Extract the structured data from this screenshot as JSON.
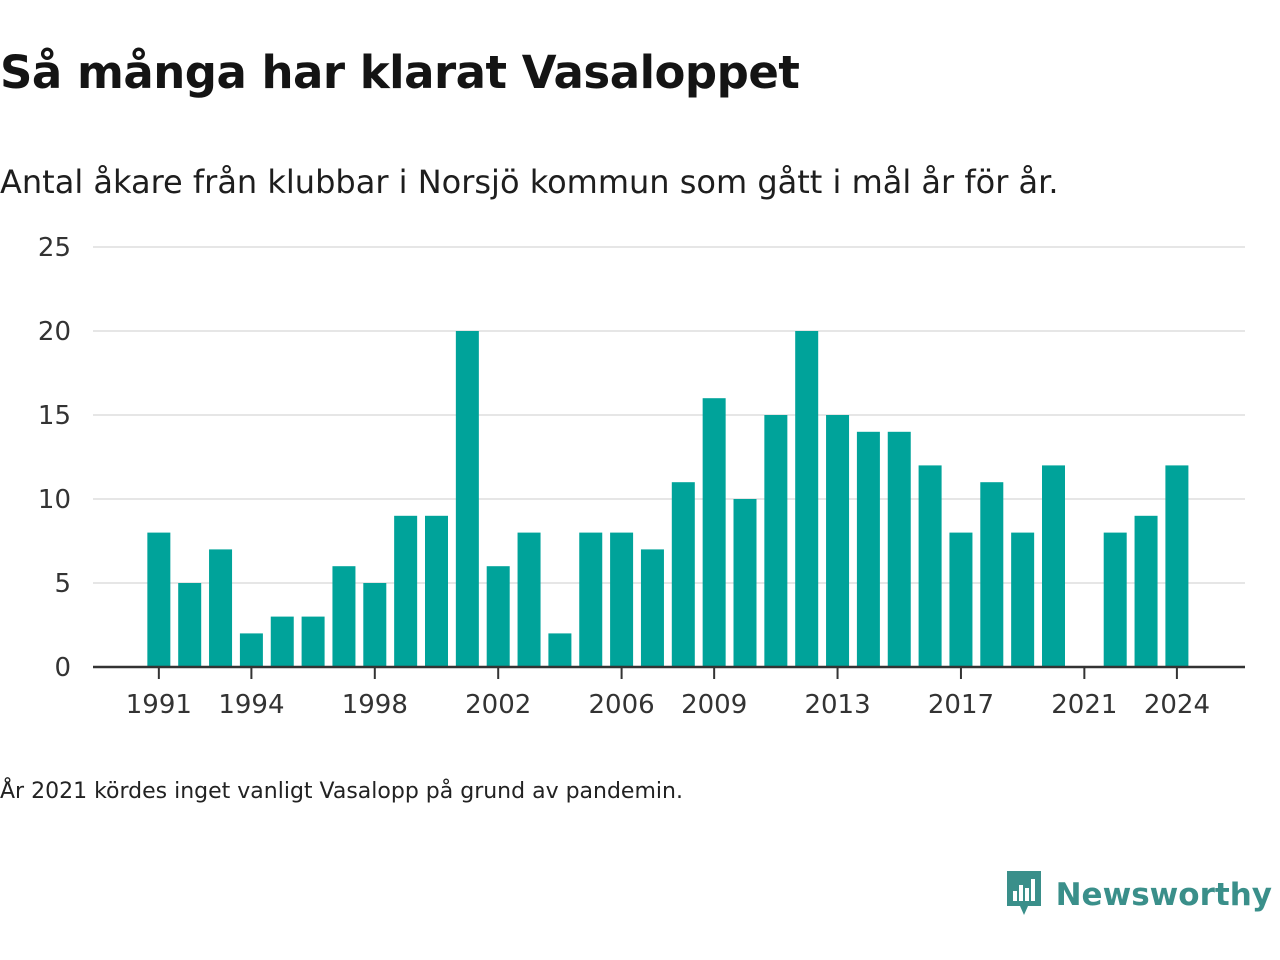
{
  "title": "Så många har klarat Vasaloppet",
  "subtitle": "Antal åkare från klubbar i Norsjö kommun som gått i mål år för år.",
  "note": "År 2021 kördes inget vanligt Vasalopp på grund av pandemin.",
  "brand": {
    "name": "Newsworthy",
    "icon": "newsworthy-logo-icon",
    "color": "#3a8f8a"
  },
  "chart_data": {
    "type": "bar",
    "bar_color": "#00a39a",
    "grid": true,
    "ylim": [
      0,
      25
    ],
    "yticks": [
      0,
      5,
      10,
      15,
      20,
      25
    ],
    "xlim": [
      1989,
      2026
    ],
    "xticks": [
      1991,
      1994,
      1998,
      2002,
      2006,
      2009,
      2013,
      2017,
      2021,
      2024
    ],
    "x": [
      1991,
      1992,
      1993,
      1994,
      1995,
      1996,
      1997,
      1998,
      1999,
      2000,
      2001,
      2002,
      2003,
      2004,
      2005,
      2006,
      2007,
      2008,
      2009,
      2010,
      2011,
      2012,
      2013,
      2014,
      2015,
      2016,
      2017,
      2018,
      2019,
      2020,
      2022,
      2023,
      2024
    ],
    "values": [
      8,
      5,
      7,
      2,
      3,
      3,
      6,
      5,
      9,
      9,
      20,
      6,
      8,
      2,
      8,
      8,
      7,
      11,
      16,
      10,
      15,
      20,
      15,
      14,
      14,
      12,
      8,
      11,
      8,
      12,
      8,
      9,
      12
    ]
  }
}
